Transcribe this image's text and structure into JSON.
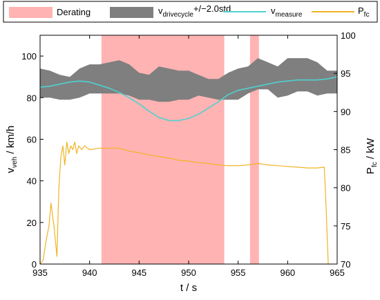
{
  "chart_data": {
    "type": "line",
    "xlabel": "t / s",
    "ylabel_left": {
      "main": "v",
      "sub": "veh",
      "unit": " / km/h"
    },
    "ylabel_right": {
      "main": "P",
      "sub": "fc",
      "unit": " / kW"
    },
    "xlim": [
      935,
      965
    ],
    "ylim_left": [
      0,
      110
    ],
    "ylim_right": [
      70,
      100
    ],
    "x_ticks": [
      935,
      940,
      945,
      950,
      955,
      960,
      965
    ],
    "y_ticks_left": [
      0,
      20,
      40,
      60,
      80,
      100
    ],
    "y_ticks_right": [
      70,
      75,
      80,
      85,
      90,
      95,
      100
    ],
    "grid": false,
    "legend_placement": "top",
    "legend": [
      {
        "key": "derating",
        "main": "Derating",
        "sub": "",
        "suffix": ""
      },
      {
        "key": "band",
        "main": "v",
        "sub": "drivecycle",
        "suffix": "+/−2.0std"
      },
      {
        "key": "measure",
        "main": "v",
        "sub": "measure",
        "suffix": ""
      },
      {
        "key": "pfc",
        "main": "P",
        "sub": "fc",
        "suffix": ""
      }
    ],
    "colors": {
      "derating": "#ffb3b3",
      "band": "#7f7f7f",
      "measure": "#4fd1d1",
      "pfc": "#f0b323"
    },
    "derating_intervals": [
      [
        941.2,
        953.6
      ],
      [
        956.2,
        957.1
      ]
    ],
    "drivecycle_band": {
      "axis": "left",
      "x": [
        935,
        936,
        937,
        938,
        939,
        940,
        941,
        942,
        943,
        944,
        945,
        946,
        947,
        948,
        949,
        950,
        951,
        952,
        953,
        954,
        955,
        956,
        957,
        958,
        959,
        960,
        961,
        962,
        963,
        964,
        965
      ],
      "upper": [
        94,
        93,
        91,
        90,
        94,
        96,
        96,
        97,
        98,
        96,
        92,
        91,
        95,
        94,
        93,
        93,
        91,
        89,
        89,
        92,
        94,
        95,
        99,
        97,
        95,
        99,
        99,
        99,
        97,
        93,
        93
      ],
      "lower": [
        80,
        80,
        79,
        79,
        80,
        82,
        82,
        82,
        82,
        81,
        79,
        79,
        78,
        78,
        79,
        79,
        81,
        80,
        79,
        79,
        79,
        82,
        84,
        84,
        80,
        81,
        83,
        83,
        81,
        82,
        82
      ]
    },
    "series": [
      {
        "key": "measure",
        "name": "v_measure",
        "axis": "left",
        "x": [
          935,
          936,
          937,
          938,
          939,
          940,
          941,
          942,
          943,
          944,
          945,
          946,
          947,
          948,
          949,
          950,
          951,
          952,
          953,
          954,
          955,
          956,
          957,
          958,
          959,
          960,
          961,
          962,
          963,
          964,
          965
        ],
        "values": [
          85,
          85.5,
          86.5,
          87.5,
          88,
          87.5,
          86,
          84.5,
          82.5,
          80,
          77,
          73.5,
          70.5,
          69,
          69,
          70,
          72,
          75,
          78,
          81.5,
          83.5,
          84.5,
          85.5,
          86.5,
          87.5,
          88,
          88.5,
          88.5,
          88.5,
          89,
          90
        ]
      },
      {
        "key": "pfc",
        "name": "P_fc",
        "axis": "right",
        "x": [
          935,
          935.3,
          935.6,
          935.9,
          936.1,
          936.4,
          936.7,
          936.9,
          937.1,
          937.3,
          937.5,
          937.7,
          937.9,
          938.1,
          938.3,
          938.5,
          938.7,
          938.9,
          939.2,
          939.5,
          940,
          941,
          942,
          943,
          944,
          945,
          946,
          947,
          948,
          949,
          950,
          951,
          952,
          953,
          954,
          955,
          956,
          957,
          958,
          959,
          960,
          961,
          962,
          963,
          963.7,
          963.9,
          964.1
        ],
        "values": [
          70,
          70.5,
          73,
          75,
          78,
          75,
          71,
          80,
          84,
          85.5,
          83,
          86,
          84.5,
          85.5,
          85,
          86,
          84.5,
          85.5,
          85,
          85.5,
          85,
          85.2,
          85.2,
          85.2,
          84.8,
          84.6,
          84.3,
          84.1,
          83.9,
          83.6,
          83.5,
          83.3,
          83.2,
          83,
          82.9,
          82.9,
          83,
          83.2,
          83,
          82.9,
          82.8,
          82.7,
          82.6,
          82.6,
          82.7,
          77,
          70
        ]
      }
    ]
  }
}
